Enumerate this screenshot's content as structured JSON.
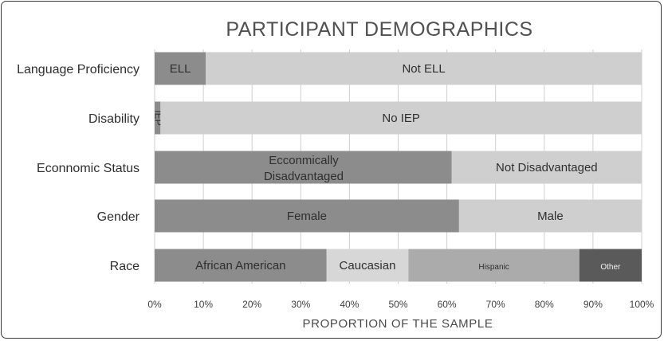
{
  "chart_data": {
    "type": "bar",
    "orientation": "horizontal",
    "stacked": true,
    "title": "PARTICIPANT DEMOGRAPHICS",
    "xlabel": "PROPORTION OF THE SAMPLE",
    "ylabel": "",
    "xlim": [
      0,
      100
    ],
    "x_ticks": [
      "0%",
      "10%",
      "20%",
      "30%",
      "40%",
      "50%",
      "60%",
      "70%",
      "80%",
      "90%",
      "100%"
    ],
    "grid": true,
    "legend": "none",
    "categories": [
      "Language Proficiency",
      "Disability",
      "Econnomic Status",
      "Gender",
      "Race"
    ],
    "bars": [
      {
        "category": "Language Proficiency",
        "segments": [
          {
            "label": "ELL",
            "value": 10.5,
            "color": "#8c8c8c"
          },
          {
            "label": "Not ELL",
            "value": 89.5,
            "color": "#cfcfcf"
          }
        ]
      },
      {
        "category": "Disability",
        "segments": [
          {
            "label": "IEP",
            "value": 1.2,
            "color": "#8c8c8c"
          },
          {
            "label": "No IEP",
            "value": 98.8,
            "color": "#cfcfcf"
          }
        ]
      },
      {
        "category": "Econnomic Status",
        "segments": [
          {
            "label": "Ecconmically Disadvantaged",
            "value": 61,
            "color": "#8c8c8c"
          },
          {
            "label": "Not Disadvantaged",
            "value": 39,
            "color": "#cfcfcf"
          }
        ]
      },
      {
        "category": "Gender",
        "segments": [
          {
            "label": "Female",
            "value": 62.5,
            "color": "#8c8c8c"
          },
          {
            "label": "Male",
            "value": 37.5,
            "color": "#cfcfcf"
          }
        ]
      },
      {
        "category": "Race",
        "segments": [
          {
            "label": "African American",
            "value": 35.3,
            "color": "#8c8c8c"
          },
          {
            "label": "Caucasian",
            "value": 16.8,
            "color": "#d7d7d7"
          },
          {
            "label": "Hispanic",
            "value": 35.1,
            "color": "#ababab"
          },
          {
            "label": "Other",
            "value": 12.8,
            "color": "#5a5a5a"
          }
        ]
      }
    ]
  }
}
